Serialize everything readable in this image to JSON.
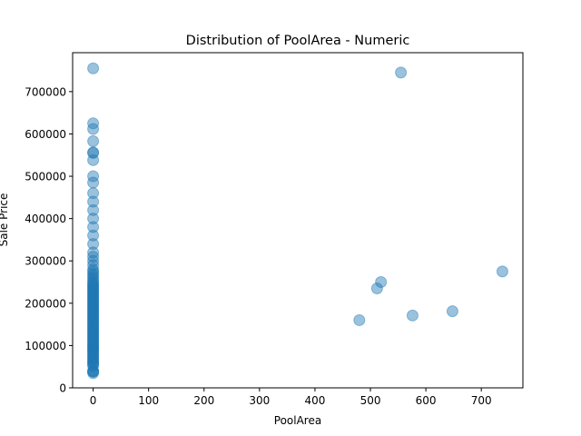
{
  "chart_data": {
    "type": "scatter",
    "title": "Distribution of PoolArea - Numeric",
    "xlabel": "PoolArea",
    "ylabel": "Sale Price",
    "xlim": [
      -37,
      775
    ],
    "ylim": [
      0,
      792000
    ],
    "xticks": [
      0,
      100,
      200,
      300,
      400,
      500,
      600,
      700
    ],
    "yticks": [
      0,
      100000,
      200000,
      300000,
      400000,
      500000,
      600000,
      700000
    ],
    "grid": false,
    "marker_color": "#1f77b4",
    "marker_alpha": 0.45,
    "series": [
      {
        "x": [
          0,
          0,
          0,
          0,
          0,
          0,
          0,
          0,
          0,
          0,
          0,
          0,
          0,
          0,
          0,
          0,
          0,
          0,
          0,
          0,
          0,
          0,
          0,
          0,
          0,
          0,
          0,
          0,
          0,
          0,
          0,
          0,
          0,
          0,
          0,
          0,
          0,
          0,
          0,
          0,
          0,
          0,
          0,
          0,
          0,
          0,
          0,
          0,
          0,
          0,
          0,
          0,
          0,
          0,
          0,
          0,
          0,
          0,
          0,
          0,
          0,
          0,
          0,
          0,
          0,
          0,
          0,
          0,
          0,
          0,
          0,
          0,
          0,
          0,
          0,
          0,
          0,
          0,
          0,
          0,
          0,
          0,
          0,
          0,
          0,
          0,
          0,
          0,
          0,
          0,
          0,
          0,
          0,
          0,
          0,
          0,
          0,
          0,
          480,
          512,
          519,
          555,
          576,
          648,
          738
        ],
        "y": [
          34900,
          37900,
          39300,
          40000,
          52000,
          55000,
          58500,
          60000,
          62383,
          66500,
          68400,
          72500,
          75000,
          79000,
          82000,
          85000,
          87500,
          90000,
          93000,
          95000,
          98000,
          100000,
          103000,
          106000,
          109000,
          112000,
          115000,
          118000,
          121000,
          124000,
          127000,
          130000,
          133000,
          136000,
          139000,
          142000,
          145000,
          148000,
          151000,
          154000,
          157000,
          160000,
          163000,
          166000,
          169000,
          172000,
          175000,
          178000,
          181000,
          184000,
          187000,
          190000,
          193000,
          196000,
          199000,
          202000,
          205000,
          208000,
          211000,
          214000,
          217000,
          220000,
          223000,
          226000,
          229000,
          232000,
          235000,
          238000,
          241000,
          244000,
          247000,
          250000,
          255000,
          260000,
          265000,
          270000,
          275000,
          280000,
          290000,
          300000,
          310000,
          320000,
          340000,
          360000,
          380000,
          400000,
          420000,
          440000,
          460000,
          485000,
          500000,
          538000,
          555000,
          556581,
          582933,
          611657,
          625000,
          755000,
          160000,
          235000,
          250000,
          745000,
          171000,
          181000,
          274970
        ]
      }
    ]
  }
}
